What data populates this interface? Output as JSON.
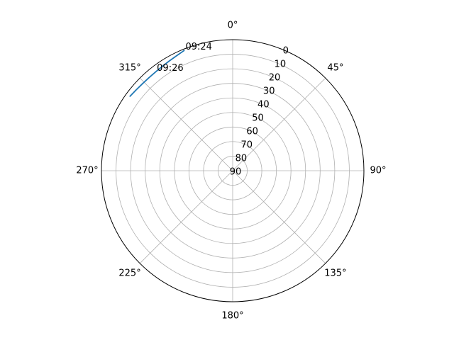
{
  "chart_data": {
    "type": "line",
    "projection": "polar",
    "theta_zero_location": "N",
    "theta_direction": "clockwise",
    "theta_ticks": [
      "0°",
      "45°",
      "90°",
      "135°",
      "180°",
      "225°",
      "270°",
      "315°"
    ],
    "theta_tick_values": [
      0,
      45,
      90,
      135,
      180,
      225,
      270,
      315
    ],
    "r_axis": "elevation",
    "r_inverted": true,
    "r_ticks": [
      "0",
      "10",
      "20",
      "30",
      "40",
      "50",
      "60",
      "70",
      "80",
      "90"
    ],
    "r_tick_values": [
      0,
      10,
      20,
      30,
      40,
      50,
      60,
      70,
      80,
      90
    ],
    "rlim": [
      90,
      0
    ],
    "grid": true,
    "series": [
      {
        "color": "#1f77b4",
        "points": [
          {
            "azimuth": 338.0,
            "elevation": 1.0
          },
          {
            "azimuth": 334.0,
            "elevation": 2.2
          },
          {
            "azimuth": 330.0,
            "elevation": 3.0
          },
          {
            "azimuth": 326.0,
            "elevation": 3.6
          },
          {
            "azimuth": 322.0,
            "elevation": 4.0
          },
          {
            "azimuth": 318.0,
            "elevation": 4.1
          },
          {
            "azimuth": 314.0,
            "elevation": 4.0
          },
          {
            "azimuth": 310.0,
            "elevation": 3.6
          },
          {
            "azimuth": 306.0,
            "elevation": 3.0
          }
        ]
      }
    ],
    "annotations": [
      {
        "text": "09:24",
        "azimuth": 338.0,
        "elevation": 1.0
      },
      {
        "text": "09:26",
        "azimuth": 322.0,
        "elevation": 4.0
      }
    ]
  }
}
